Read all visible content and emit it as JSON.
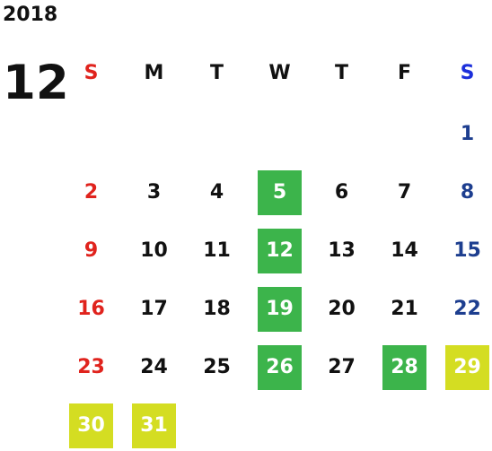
{
  "calendar": {
    "year": "2018",
    "month": "12",
    "weekdays": [
      "S",
      "M",
      "T",
      "W",
      "T",
      "F",
      "S"
    ],
    "weeks": [
      [
        null,
        null,
        null,
        null,
        null,
        null,
        {
          "day": "1"
        }
      ],
      [
        {
          "day": "2"
        },
        {
          "day": "3"
        },
        {
          "day": "4"
        },
        {
          "day": "5",
          "mark": "green"
        },
        {
          "day": "6"
        },
        {
          "day": "7"
        },
        {
          "day": "8"
        }
      ],
      [
        {
          "day": "9"
        },
        {
          "day": "10"
        },
        {
          "day": "11"
        },
        {
          "day": "12",
          "mark": "green"
        },
        {
          "day": "13"
        },
        {
          "day": "14"
        },
        {
          "day": "15"
        }
      ],
      [
        {
          "day": "16"
        },
        {
          "day": "17"
        },
        {
          "day": "18"
        },
        {
          "day": "19",
          "mark": "green"
        },
        {
          "day": "20"
        },
        {
          "day": "21"
        },
        {
          "day": "22"
        }
      ],
      [
        {
          "day": "23"
        },
        {
          "day": "24"
        },
        {
          "day": "25"
        },
        {
          "day": "26",
          "mark": "green"
        },
        {
          "day": "27"
        },
        {
          "day": "28",
          "mark": "green"
        },
        {
          "day": "29",
          "mark": "yellow"
        }
      ],
      [
        {
          "day": "30",
          "mark": "yellow"
        },
        {
          "day": "31",
          "mark": "yellow"
        },
        null,
        null,
        null,
        null,
        null
      ]
    ]
  },
  "colors": {
    "text": "#111111",
    "sunday": "#e0231d",
    "saturday": "#1d3e8f",
    "saturday_header": "#1c2fdb",
    "green_mark": "#3cb44b",
    "yellow_mark": "#d4dd22",
    "mark_text": "#ffffff"
  }
}
